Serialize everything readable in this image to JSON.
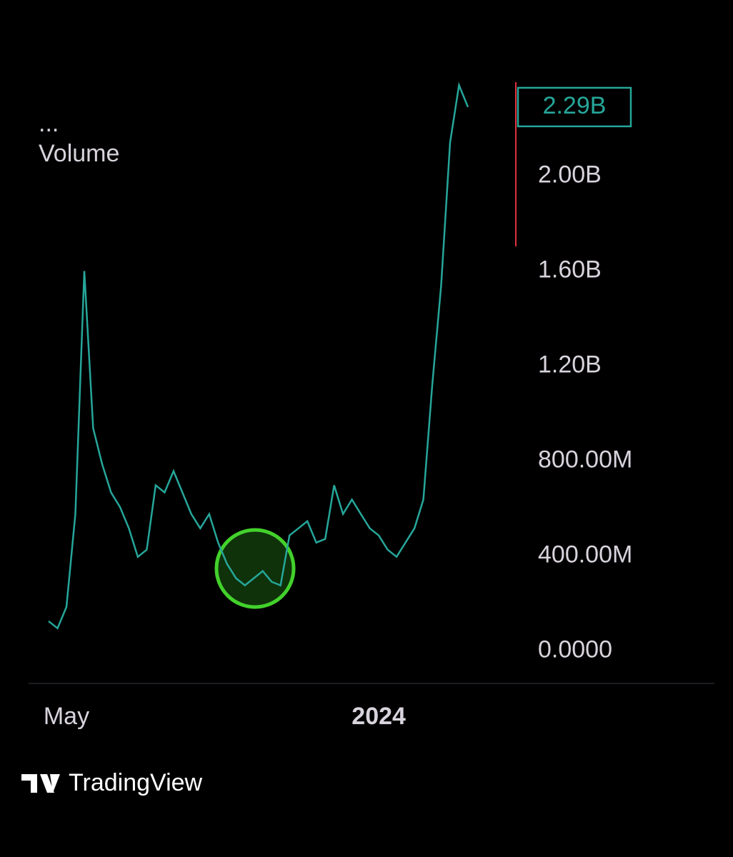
{
  "chart_data": {
    "type": "line",
    "menu": "...",
    "indicator": "Volume",
    "brand": "TradingView",
    "categories": [
      null,
      null,
      "May",
      null,
      null,
      null,
      null,
      null,
      null,
      null,
      null,
      null,
      null,
      null,
      null,
      null,
      null,
      null,
      null,
      null,
      null,
      null,
      null,
      null,
      null,
      null,
      null,
      null,
      null,
      null,
      null,
      null,
      null,
      null,
      null,
      null,
      null,
      "2024",
      null,
      null,
      null,
      null,
      null,
      null,
      null,
      null,
      null,
      null
    ],
    "values": [
      126000000,
      96000000,
      186000000,
      577000000,
      1600000000,
      938000000,
      788000000,
      668000000,
      607000000,
      517000000,
      397000000,
      427000000,
      698000000,
      668000000,
      758000000,
      668000000,
      577000000,
      517000000,
      577000000,
      457000000,
      367000000,
      307000000,
      277000000,
      307000000,
      337000000,
      292000000,
      277000000,
      487000000,
      517000000,
      547000000,
      457000000,
      472000000,
      698000000,
      577000000,
      638000000,
      577000000,
      517000000,
      487000000,
      427000000,
      397000000,
      457000000,
      517000000,
      638000000,
      1119000000,
      1540000000,
      2141000000,
      2382000000,
      2290000000
    ],
    "color": "#26a69a",
    "last_value": {
      "value": 2290000000,
      "label": "2.29B"
    },
    "ylim": [
      -130000000,
      2410000000
    ],
    "yticks": [
      {
        "value": 0,
        "label": "0.0000"
      },
      {
        "value": 400000000,
        "label": "400.00M"
      },
      {
        "value": 800000000,
        "label": "800.00M"
      },
      {
        "value": 1200000000,
        "label": "1.20B"
      },
      {
        "value": 1600000000,
        "label": "1.60B"
      },
      {
        "value": 2000000000,
        "label": "2.00B"
      }
    ],
    "grid": false
  }
}
